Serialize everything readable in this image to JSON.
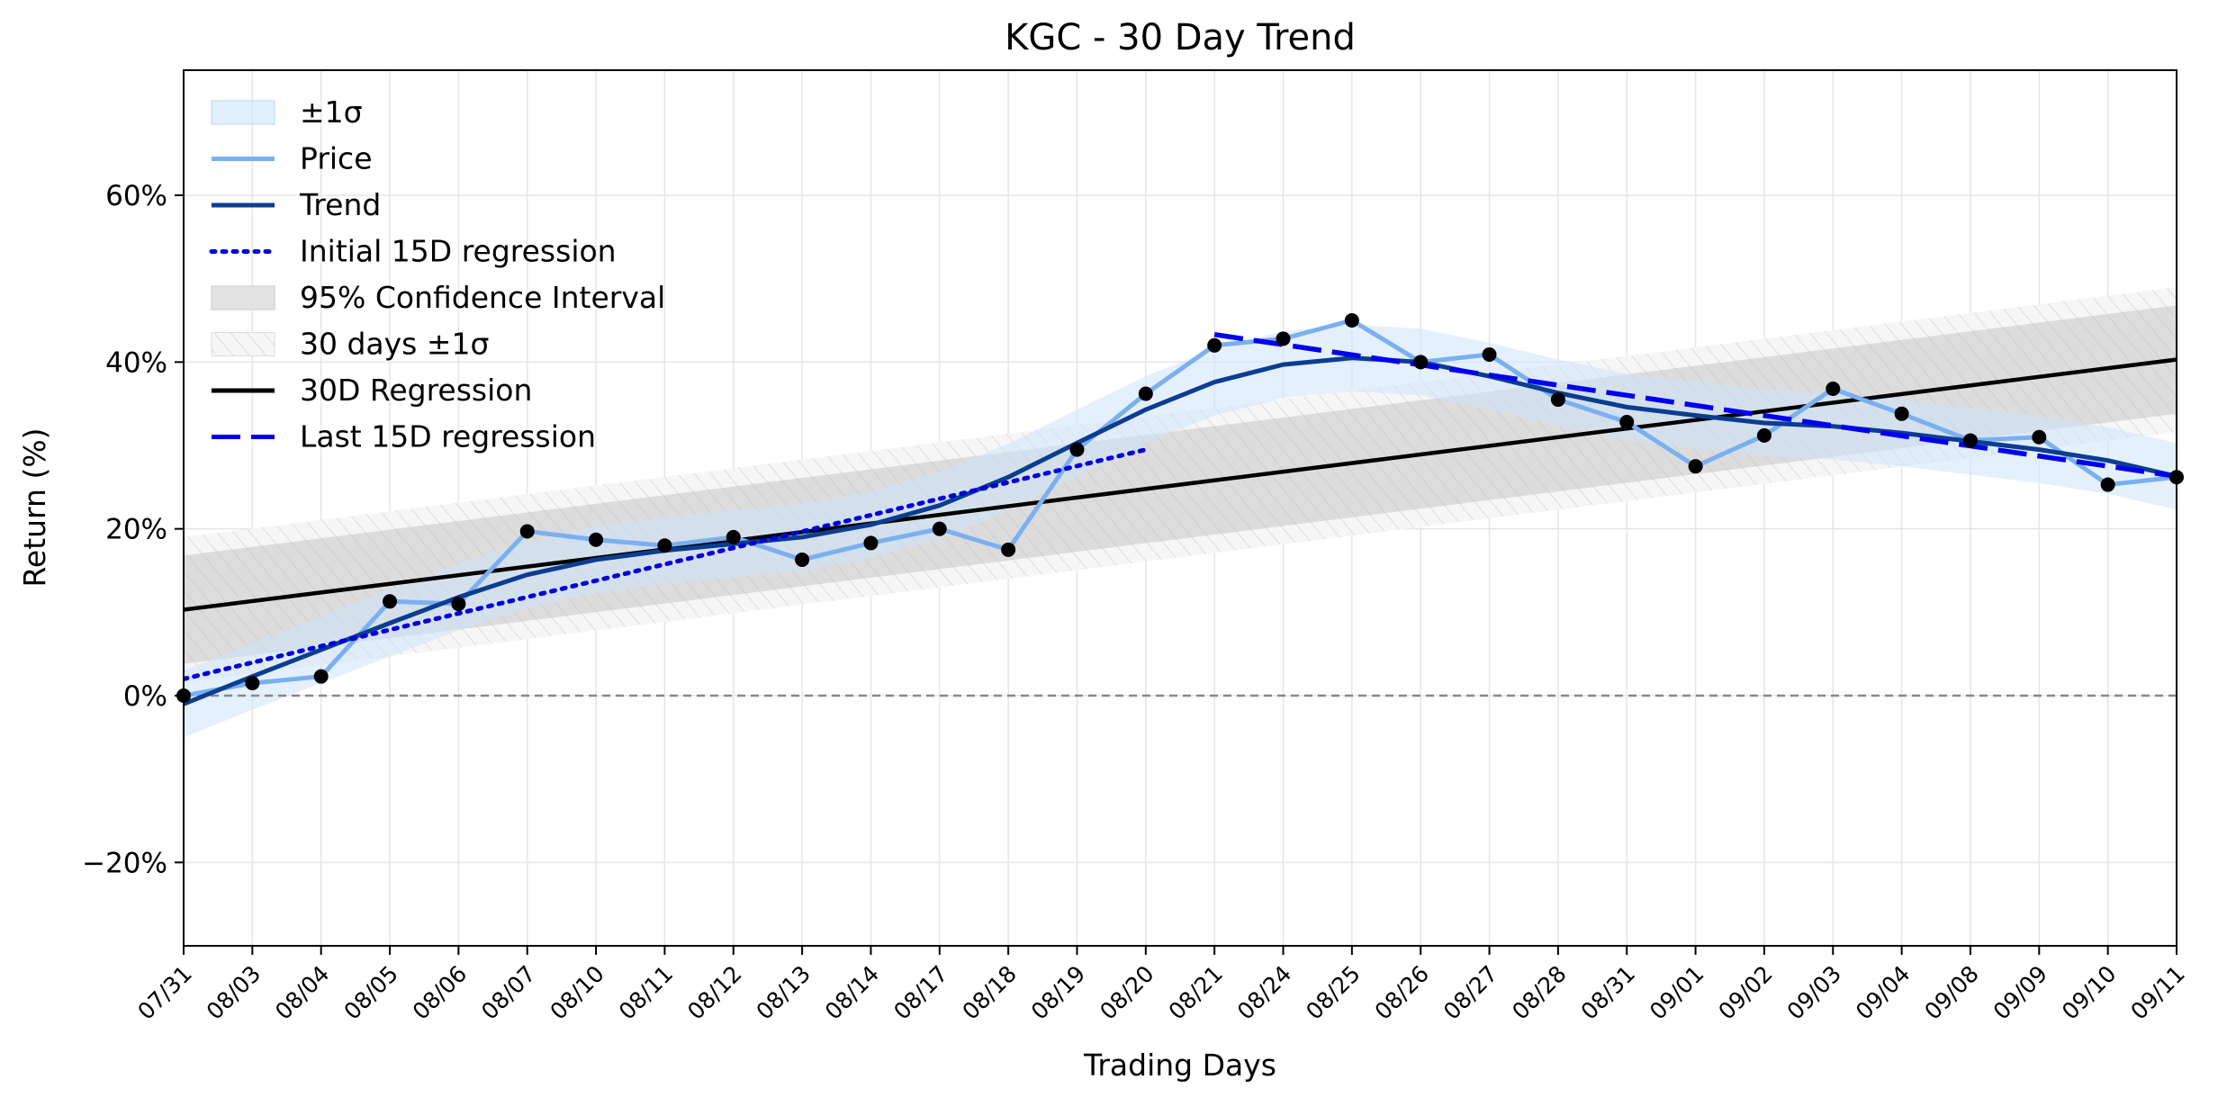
{
  "chart_data": {
    "type": "line",
    "title": "KGC - 30 Day Trend",
    "xlabel": "Trading Days",
    "ylabel": "Return (%)",
    "ylim": [
      -30,
      75
    ],
    "yticks": [
      -20,
      0,
      20,
      40,
      60
    ],
    "ytick_labels": [
      "−20%",
      "0%",
      "20%",
      "40%",
      "60%"
    ],
    "grid": true,
    "legend_position": "top-left",
    "categories": [
      "07/31",
      "08/03",
      "08/04",
      "08/05",
      "08/06",
      "08/07",
      "08/10",
      "08/11",
      "08/12",
      "08/13",
      "08/14",
      "08/17",
      "08/18",
      "08/19",
      "08/20",
      "08/21",
      "08/24",
      "08/25",
      "08/26",
      "08/27",
      "08/28",
      "08/31",
      "09/01",
      "09/02",
      "09/03",
      "09/04",
      "09/08",
      "09/09",
      "09/10",
      "09/11"
    ],
    "series": [
      {
        "name": "Price",
        "color": "#7ab0f0",
        "values": [
          0.0,
          1.5,
          2.3,
          11.3,
          11.0,
          19.7,
          18.7,
          18.0,
          19.0,
          16.3,
          18.3,
          20.0,
          17.5,
          29.5,
          36.2,
          42.0,
          42.8,
          45.0,
          40.0,
          40.9,
          35.5,
          32.8,
          27.5,
          31.2,
          36.8,
          33.8,
          30.6,
          31.0,
          25.3,
          26.2
        ]
      },
      {
        "name": "Trend",
        "color": "#0b3d91",
        "values": [
          -1.0,
          2.3,
          5.5,
          8.7,
          11.8,
          14.5,
          16.3,
          17.4,
          18.2,
          19.0,
          20.5,
          22.8,
          26.2,
          30.3,
          34.3,
          37.6,
          39.7,
          40.5,
          40.0,
          38.3,
          36.3,
          34.6,
          33.6,
          32.7,
          32.3,
          31.5,
          30.5,
          29.5,
          28.2,
          26.3
        ]
      },
      {
        "name": "±1σ",
        "color": "#cfe4fb",
        "band": 4.0
      },
      {
        "name": "Initial 15D regression",
        "color": "#0000dd",
        "start": 2.0,
        "end": 29.5,
        "from_index": 0,
        "to_index": 14
      },
      {
        "name": "Last 15D regression",
        "color": "#0000ee",
        "start": 43.3,
        "end": 26.3,
        "from_index": 15,
        "to_index": 29
      },
      {
        "name": "30D Regression",
        "color": "#000000",
        "start": 10.3,
        "end": 40.3
      },
      {
        "name": "95% Confidence Interval",
        "color": "#bdbdbd",
        "start_half_width": 6.5,
        "end_half_width": 6.5
      },
      {
        "name": "30 days ±1σ",
        "color": "#cccccc",
        "half_width": 8.7
      }
    ],
    "reference_line": {
      "y": 0,
      "style": "dashed",
      "color": "#888888"
    },
    "legend": [
      "±1σ",
      "Price",
      "Trend",
      "Initial 15D regression",
      "95% Confidence Interval",
      "30 days ±1σ",
      "30D Regression",
      "Last 15D regression"
    ]
  }
}
